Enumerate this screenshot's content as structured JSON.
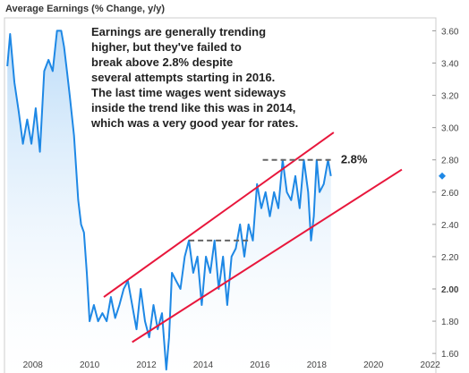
{
  "chart_data": {
    "type": "line",
    "title": "Average Earnings (% Change, y/y)",
    "xlabel": "",
    "ylabel": "",
    "xlim": [
      2007.0,
      2022.2
    ],
    "ylim": [
      1.44,
      3.68
    ],
    "x_ticks": [
      2008,
      2010,
      2012,
      2014,
      2016,
      2018,
      2020,
      2022
    ],
    "y_ticks": [
      1.6,
      1.8,
      2.0,
      2.2,
      2.4,
      2.6,
      2.8,
      3.0,
      3.2,
      3.4,
      3.6
    ],
    "y_tick_labels": [
      "1.60",
      "1.80",
      "2.00",
      "2.20",
      "2.40",
      "2.60",
      "2.80",
      "3.00",
      "3.20",
      "3.40",
      "3.60"
    ],
    "y_axis_position": "right",
    "grid": false,
    "series": [
      {
        "color": "#1e88e5",
        "x": [
          2007.1,
          2007.2,
          2007.35,
          2007.5,
          2007.65,
          2007.8,
          2007.95,
          2008.1,
          2008.25,
          2008.4,
          2008.55,
          2008.7,
          2008.85,
          2009.0,
          2009.1,
          2009.2,
          2009.3,
          2009.45,
          2009.6,
          2009.7,
          2009.8,
          2009.9,
          2010.0,
          2010.15,
          2010.3,
          2010.45,
          2010.6,
          2010.75,
          2010.9,
          2011.05,
          2011.2,
          2011.35,
          2011.5,
          2011.65,
          2011.8,
          2011.95,
          2012.1,
          2012.25,
          2012.4,
          2012.55,
          2012.7,
          2012.8,
          2012.9,
          2013.05,
          2013.2,
          2013.35,
          2013.5,
          2013.65,
          2013.8,
          2013.95,
          2014.1,
          2014.25,
          2014.4,
          2014.55,
          2014.7,
          2014.85,
          2015.0,
          2015.15,
          2015.3,
          2015.45,
          2015.6,
          2015.75,
          2015.9,
          2016.05,
          2016.2,
          2016.35,
          2016.5,
          2016.65,
          2016.8,
          2016.95,
          2017.1,
          2017.25,
          2017.4,
          2017.55,
          2017.7,
          2017.8,
          2017.9,
          2018.0,
          2018.1,
          2018.25,
          2018.4,
          2018.5
        ],
        "values": [
          3.38,
          3.58,
          3.28,
          3.1,
          2.9,
          3.05,
          2.9,
          3.12,
          2.85,
          3.35,
          3.42,
          3.35,
          3.6,
          3.6,
          3.5,
          3.35,
          3.2,
          2.95,
          2.55,
          2.4,
          2.35,
          2.1,
          1.8,
          1.9,
          1.8,
          1.85,
          1.8,
          1.95,
          1.82,
          1.9,
          2.0,
          2.05,
          1.9,
          1.75,
          2.0,
          1.8,
          1.7,
          1.9,
          1.75,
          1.85,
          1.5,
          1.7,
          2.1,
          2.05,
          2.0,
          2.2,
          2.3,
          2.1,
          2.2,
          1.9,
          2.2,
          2.1,
          2.3,
          2.0,
          2.2,
          1.9,
          2.2,
          2.25,
          2.4,
          2.2,
          2.4,
          2.3,
          2.65,
          2.5,
          2.6,
          2.45,
          2.6,
          2.5,
          2.8,
          2.6,
          2.55,
          2.7,
          2.5,
          2.8,
          2.6,
          2.3,
          2.45,
          2.8,
          2.6,
          2.65,
          2.8,
          2.7
        ]
      }
    ],
    "last_value_marker": 2.7,
    "channel_lines": [
      {
        "name": "upper",
        "color": "#e8173c",
        "x": [
          2010.5,
          2018.6
        ],
        "y": [
          1.95,
          2.97
        ]
      },
      {
        "name": "lower",
        "color": "#e8173c",
        "x": [
          2011.5,
          2021.0
        ],
        "y": [
          1.67,
          2.74
        ]
      }
    ],
    "reference_levels": [
      {
        "name": "2.3 level",
        "color": "#666666",
        "x": [
          2013.5,
          2015.7
        ],
        "y": 2.3
      },
      {
        "name": "2.8 level",
        "color": "#666666",
        "x": [
          2016.1,
          2018.6
        ],
        "y": 2.8,
        "label": "2.8%"
      }
    ],
    "annotation": {
      "lines": [
        "Earnings are generally trending",
        "higher, but they've failed to",
        "break above 2.8% despite",
        "several attempts starting in 2016.",
        " The last  time wages went sideways",
        "inside the trend like this was in 2014,",
        "which was a very good year for rates."
      ]
    }
  }
}
